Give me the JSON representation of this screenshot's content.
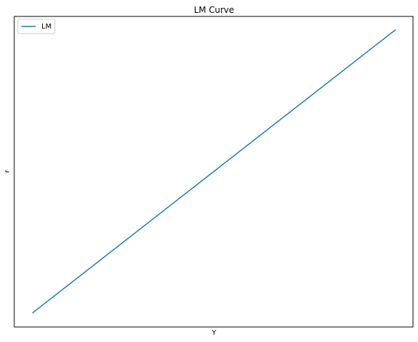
{
  "chart_data": {
    "type": "line",
    "title": "LM Curve",
    "xlabel": "Y",
    "ylabel": "r",
    "xticks": [],
    "yticks": [],
    "grid": false,
    "legend_position": "top-left",
    "xlim": [
      0,
      100
    ],
    "ylim": [
      0,
      100
    ],
    "series": [
      {
        "name": "LM",
        "color": "#1f77b4",
        "x": [
          0,
          100
        ],
        "y": [
          0,
          100
        ]
      }
    ]
  }
}
